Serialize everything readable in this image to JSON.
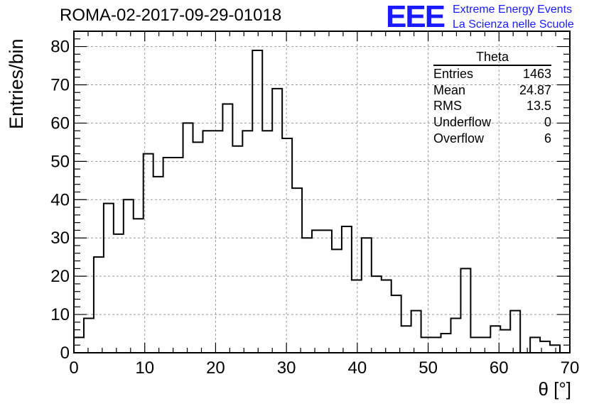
{
  "chart_data": {
    "type": "histogram",
    "title": "ROMA-02-2017-09-29-01018",
    "xlabel": "θ [°]",
    "ylabel": "Entries/bin",
    "xlim": [
      0,
      70
    ],
    "ylim": [
      0,
      84
    ],
    "bin_width": 1.4,
    "xticks": [
      0,
      10,
      20,
      30,
      40,
      50,
      60,
      70
    ],
    "yticks": [
      0,
      10,
      20,
      30,
      40,
      50,
      60,
      70,
      80
    ],
    "grid": true,
    "values": [
      4,
      9,
      25,
      39,
      31,
      40,
      35,
      52,
      46,
      51,
      51,
      60,
      55,
      58,
      58,
      65,
      54,
      58,
      79,
      58,
      69,
      56,
      43,
      30,
      32,
      32,
      27,
      33,
      19,
      30,
      20,
      19,
      15,
      7,
      11,
      4,
      4,
      5,
      9,
      22,
      4,
      4,
      7,
      6,
      11,
      0,
      4,
      3,
      2,
      0
    ],
    "stats": {
      "name": "Theta",
      "rows": [
        {
          "label": "Entries",
          "value": "1463"
        },
        {
          "label": "Mean",
          "value": "24.87"
        },
        {
          "label": "RMS",
          "value": "13.5"
        },
        {
          "label": "Underflow",
          "value": "0"
        },
        {
          "label": "Overflow",
          "value": "6"
        }
      ]
    }
  },
  "logo": {
    "mark": "EEE",
    "line1": "Extreme Energy Events",
    "line2": "La Scienza nelle Scuole",
    "color": "#1a1aff"
  }
}
